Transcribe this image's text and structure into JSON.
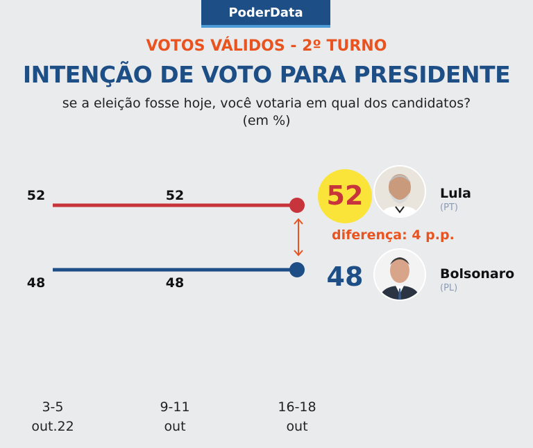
{
  "brand": "PoderData",
  "kicker": "VOTOS VÁLIDOS - 2º TURNO",
  "title": "INTENÇÃO DE VOTO PARA PRESIDENTE",
  "subtitle": "se a eleição fosse hoje, você votaria em qual dos candidatos?",
  "unit": "(em %)",
  "difference_label": "diferença: 4 p.p.",
  "colors": {
    "lula": "#c7343b",
    "bolsonaro": "#1d4e86",
    "accent": "#e8531f",
    "highlight": "#fbe43a"
  },
  "candidates": [
    {
      "name": "Lula",
      "party": "(PT)",
      "value": "52",
      "avatar_icon": "lula-portrait-icon"
    },
    {
      "name": "Bolsonaro",
      "party": "(PL)",
      "value": "48",
      "avatar_icon": "bolsonaro-portrait-icon"
    }
  ],
  "chart_data": {
    "type": "line",
    "categories": [
      "3-5 out.22",
      "9-11 out",
      "16-18 out"
    ],
    "category_lines": [
      [
        "3-5",
        "out.22"
      ],
      [
        "9-11",
        "out"
      ],
      [
        "16-18",
        "out"
      ]
    ],
    "series": [
      {
        "name": "Lula",
        "values": [
          52,
          52,
          52
        ],
        "labels": [
          "52",
          "52",
          ""
        ]
      },
      {
        "name": "Bolsonaro",
        "values": [
          48,
          48,
          48
        ],
        "labels": [
          "48",
          "48",
          ""
        ]
      }
    ],
    "ylim": [
      47,
      53
    ],
    "grid": false
  }
}
